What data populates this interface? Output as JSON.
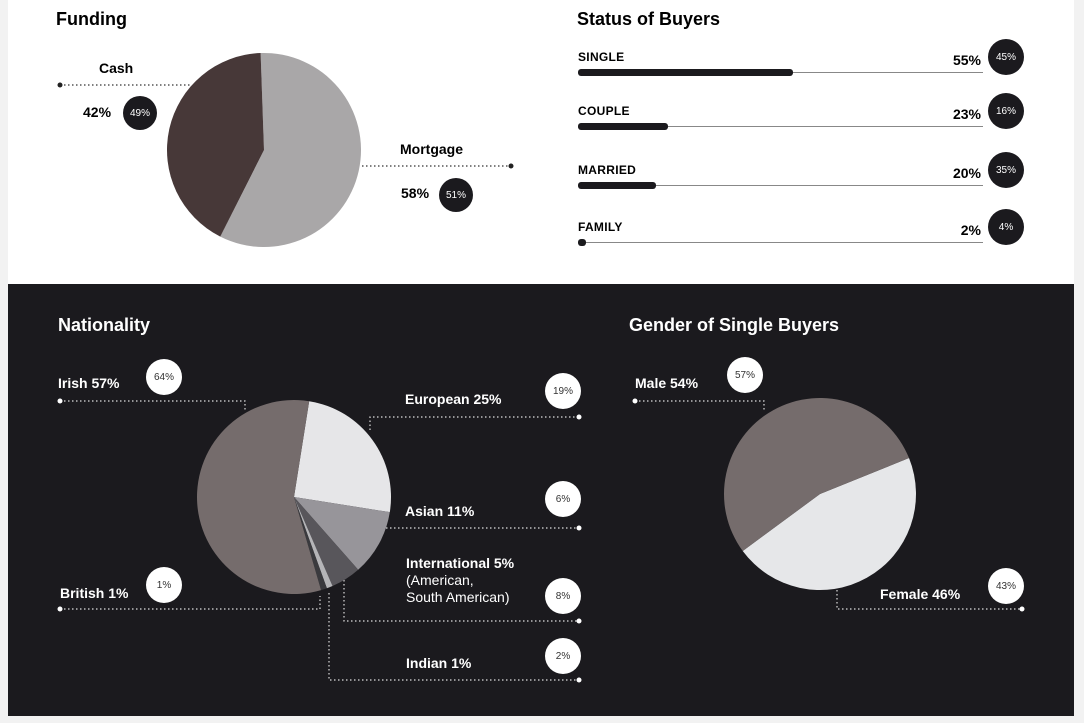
{
  "chart_data": [
    {
      "type": "pie",
      "title": "Funding",
      "slices": [
        {
          "label": "Mortgage",
          "value": 58,
          "badge": "51%",
          "color": "#a9a7a8"
        },
        {
          "label": "Cash",
          "value": 42,
          "badge": "49%",
          "color": "#473838"
        }
      ],
      "start_angle": -2
    },
    {
      "type": "bar",
      "title": "Status of Buyers",
      "categories": [
        "SINGLE",
        "COUPLE",
        "MARRIED",
        "FAMILY"
      ],
      "values": [
        55,
        23,
        20,
        2
      ],
      "value_labels": [
        "55%",
        "23%",
        "20%",
        "2%"
      ],
      "badges": [
        "45%",
        "16%",
        "35%",
        "4%"
      ]
    },
    {
      "type": "pie",
      "title": "Nationality",
      "slices": [
        {
          "label": "European 25%",
          "value": 25,
          "badge": "19%",
          "color": "#e6e6e8"
        },
        {
          "label": "Asian 11%",
          "value": 11,
          "badge": "6%",
          "color": "#97959a"
        },
        {
          "label": "International 5%",
          "sub1": "(American,",
          "sub2": "South American)",
          "value": 5,
          "badge": "8%",
          "color": "#58565b"
        },
        {
          "label": "Indian 1%",
          "value": 1,
          "badge": "2%",
          "color": "#b5b5b8"
        },
        {
          "label": "British 1%",
          "value": 1,
          "badge": "1%",
          "color": "#3a3a3e"
        },
        {
          "label": "Irish 57%",
          "value": 57,
          "badge": "64%",
          "color": "#756c6c"
        }
      ],
      "start_angle": 9
    },
    {
      "type": "pie",
      "title": "Gender of Single Buyers",
      "slices": [
        {
          "label": "Female 46%",
          "value": 46,
          "badge": "43%",
          "color": "#e6e7e9"
        },
        {
          "label": "Male 54%",
          "value": 54,
          "badge": "57%",
          "color": "#756c6c"
        }
      ],
      "start_angle": 68
    }
  ]
}
